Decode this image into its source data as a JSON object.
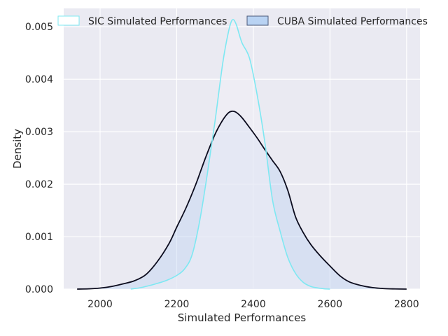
{
  "chart_data": {
    "type": "area",
    "title": "",
    "xlabel": "Simulated Performances",
    "ylabel": "Density",
    "xlim": [
      1905,
      2835
    ],
    "ylim": [
      0,
      0.00535
    ],
    "xticks": [
      2000,
      2200,
      2400,
      2600,
      2800
    ],
    "xtick_labels": [
      "2000",
      "2200",
      "2400",
      "2600",
      "2800"
    ],
    "yticks": [
      0,
      0.001,
      0.002,
      0.003,
      0.004,
      0.005
    ],
    "ytick_labels": [
      "0.000",
      "0.001",
      "0.002",
      "0.003",
      "0.004",
      "0.005"
    ],
    "grid": true,
    "legend_position": "top-center",
    "series": [
      {
        "name": "SIC Simulated Performances",
        "line_color": "#7ee8f2",
        "fill_color": "#f1eff6",
        "x": [
          2080,
          2100,
          2125,
          2150,
          2175,
          2200,
          2220,
          2240,
          2260,
          2280,
          2300,
          2320,
          2335,
          2345,
          2355,
          2370,
          2390,
          2410,
          2430,
          2450,
          2470,
          2490,
          2510,
          2530,
          2550,
          2570,
          2585,
          2600
        ],
        "y": [
          0.0,
          2e-05,
          6e-05,
          0.00011,
          0.00017,
          0.00026,
          0.00038,
          0.00065,
          0.0013,
          0.0022,
          0.0032,
          0.0043,
          0.0049,
          0.00513,
          0.00505,
          0.0047,
          0.0044,
          0.0037,
          0.0028,
          0.0017,
          0.0011,
          0.0006,
          0.0003,
          0.00013,
          5e-05,
          2e-05,
          5e-06,
          0.0
        ]
      },
      {
        "name": "CUBA Simulated Performances",
        "line_color": "#0c0c1e",
        "fill_color": "#c0d5f2",
        "x": [
          1940,
          1970,
          2000,
          2030,
          2060,
          2090,
          2120,
          2150,
          2180,
          2200,
          2225,
          2250,
          2275,
          2300,
          2320,
          2335,
          2345,
          2355,
          2370,
          2390,
          2410,
          2430,
          2450,
          2470,
          2490,
          2510,
          2530,
          2550,
          2575,
          2600,
          2625,
          2650,
          2680,
          2710,
          2740,
          2770,
          2800
        ],
        "y": [
          0.0,
          5e-06,
          2e-05,
          5e-05,
          0.0001,
          0.00016,
          0.00028,
          0.00053,
          0.00087,
          0.00118,
          0.00156,
          0.002,
          0.0025,
          0.00295,
          0.00322,
          0.00336,
          0.00339,
          0.00337,
          0.00327,
          0.00308,
          0.00288,
          0.00266,
          0.00245,
          0.00224,
          0.00188,
          0.00138,
          0.00108,
          0.00085,
          0.00063,
          0.00044,
          0.00026,
          0.00014,
          7e-05,
          3e-05,
          1e-05,
          3e-06,
          0.0
        ]
      }
    ]
  }
}
